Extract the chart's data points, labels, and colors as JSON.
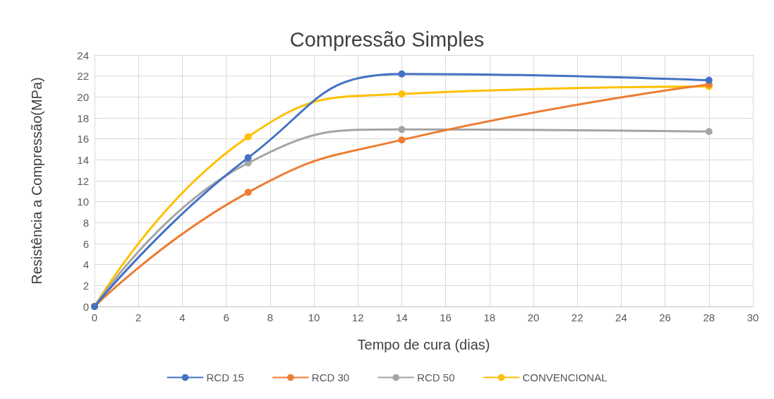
{
  "chart_data": {
    "type": "line",
    "title": "Compressão Simples",
    "xlabel": "Tempo de cura (dias)",
    "ylabel": "Resistência a Compressão(MPa)",
    "x": [
      0,
      7,
      14,
      28
    ],
    "series": [
      {
        "name": "RCD 15",
        "color": "#4472c4",
        "values": [
          0,
          14.2,
          22.2,
          21.6
        ]
      },
      {
        "name": "RCD 30",
        "color": "#ed7d31",
        "values": [
          0,
          10.9,
          15.9,
          21.2
        ]
      },
      {
        "name": "RCD 50",
        "color": "#a5a5a5",
        "values": [
          0,
          13.7,
          16.9,
          16.7
        ]
      },
      {
        "name": "CONVENCIONAL",
        "color": "#ffc000",
        "values": [
          0,
          16.2,
          20.3,
          21.0
        ]
      }
    ],
    "xlim": [
      0,
      30
    ],
    "xticks": [
      0,
      2,
      4,
      6,
      8,
      10,
      12,
      14,
      16,
      18,
      20,
      22,
      24,
      26,
      28,
      30
    ],
    "ylim": [
      0,
      24
    ],
    "yticks": [
      0,
      2,
      4,
      6,
      8,
      10,
      12,
      14,
      16,
      18,
      20,
      22,
      24
    ],
    "grid": true,
    "legend": "bottom",
    "marker": "circle",
    "line_style": "solid"
  }
}
